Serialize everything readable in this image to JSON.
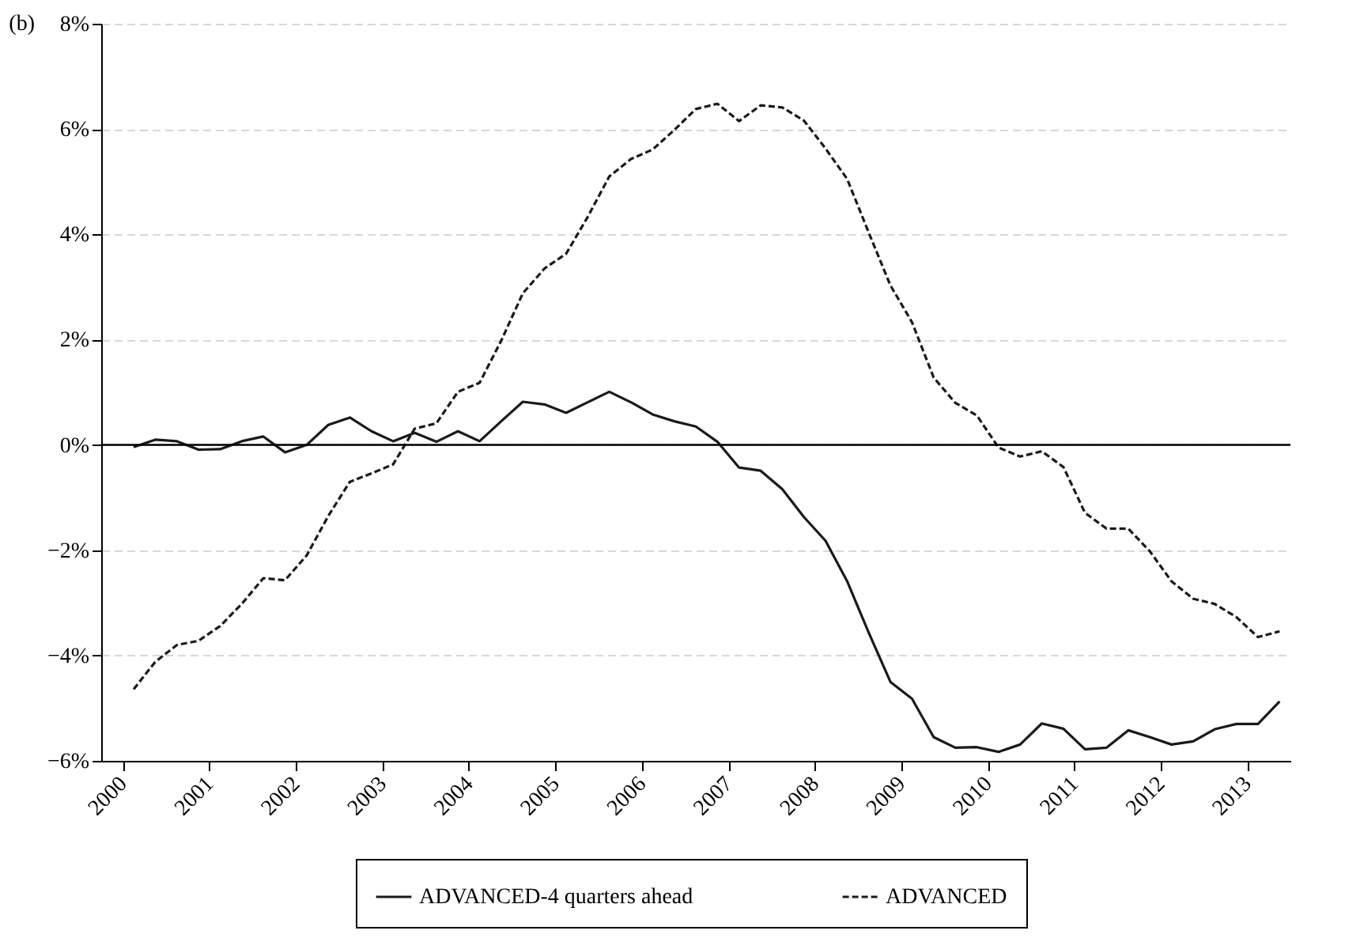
{
  "chart_data": {
    "type": "line",
    "annotations": [
      "(b)"
    ],
    "x": [
      2000.125,
      2000.375,
      2000.625,
      2000.875,
      2001.125,
      2001.375,
      2001.625,
      2001.875,
      2002.125,
      2002.375,
      2002.625,
      2002.875,
      2003.125,
      2003.375,
      2003.625,
      2003.875,
      2004.125,
      2004.375,
      2004.625,
      2004.875,
      2005.125,
      2005.375,
      2005.625,
      2005.875,
      2006.125,
      2006.375,
      2006.625,
      2006.875,
      2007.125,
      2007.375,
      2007.625,
      2007.875,
      2008.125,
      2008.375,
      2008.625,
      2008.875,
      2009.125,
      2009.375,
      2009.625,
      2009.875,
      2010.125,
      2010.375,
      2010.625,
      2010.875,
      2011.125,
      2011.375,
      2011.625,
      2011.875,
      2012.125,
      2012.375,
      2012.625,
      2012.875,
      2013.125,
      2013.375
    ],
    "series": [
      {
        "name": "ADVANCED-4 quarters ahead",
        "color": "#1a1a1a",
        "line_style": "solid",
        "values": [
          -0.04,
          0.1,
          0.07,
          -0.09,
          -0.08,
          0.07,
          0.16,
          -0.14,
          0.0,
          0.38,
          0.52,
          0.26,
          0.07,
          0.23,
          0.06,
          0.26,
          0.07,
          0.45,
          0.82,
          0.77,
          0.61,
          0.81,
          1.01,
          0.81,
          0.58,
          0.45,
          0.35,
          0.06,
          -0.43,
          -0.49,
          -0.84,
          -1.37,
          -1.82,
          -2.59,
          -3.57,
          -4.5,
          -4.82,
          -5.55,
          -5.75,
          -5.74,
          -5.83,
          -5.69,
          -5.29,
          -5.39,
          -5.78,
          -5.75,
          -5.42,
          -5.55,
          -5.69,
          -5.63,
          -5.4,
          -5.3,
          -5.3,
          -4.87
        ]
      },
      {
        "name": "ADVANCED",
        "color": "#1a1a1a",
        "line_style": "dashed",
        "values": [
          -4.64,
          -4.12,
          -3.8,
          -3.72,
          -3.44,
          -3.02,
          -2.53,
          -2.57,
          -2.1,
          -1.35,
          -0.7,
          -0.54,
          -0.37,
          0.31,
          0.41,
          1.01,
          1.18,
          1.98,
          2.88,
          3.35,
          3.63,
          4.33,
          5.1,
          5.43,
          5.61,
          5.98,
          6.38,
          6.48,
          6.15,
          6.45,
          6.41,
          6.16,
          5.63,
          5.05,
          4.03,
          3.03,
          2.33,
          1.28,
          0.8,
          0.56,
          -0.05,
          -0.22,
          -0.12,
          -0.42,
          -1.29,
          -1.59,
          -1.59,
          -2.02,
          -2.59,
          -2.92,
          -3.02,
          -3.27,
          -3.65,
          -3.54
        ]
      }
    ],
    "xlim": [
      1999.75,
      2013.5
    ],
    "xticks": [
      2000,
      2001,
      2002,
      2003,
      2004,
      2005,
      2006,
      2007,
      2008,
      2009,
      2010,
      2011,
      2012,
      2013
    ],
    "ylim": [
      -6,
      8
    ],
    "yticks": [
      {
        "value": -6,
        "label": "−6%"
      },
      {
        "value": -4,
        "label": "−4%"
      },
      {
        "value": -2,
        "label": "−2%"
      },
      {
        "value": 0,
        "label": "0%"
      },
      {
        "value": 2,
        "label": "2%"
      },
      {
        "value": 4,
        "label": "4%"
      },
      {
        "value": 6,
        "label": "6%"
      },
      {
        "value": 8,
        "label": "8%"
      }
    ],
    "ref_lines": [
      {
        "axis": "y",
        "value": 0,
        "color": "#000000"
      }
    ],
    "grid": "y",
    "legend": "bottom"
  }
}
